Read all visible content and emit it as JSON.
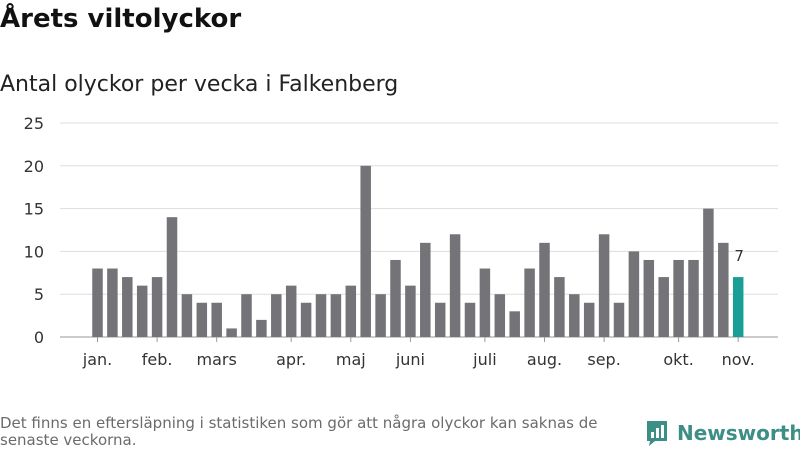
{
  "header": {
    "title": "Årets viltolyckor",
    "subtitle": "Antal olyckor per vecka i Falkenberg"
  },
  "footer": {
    "note": "Det finns en eftersläpning i statistiken som gör att några olyckor kan saknas de senaste veckorna.",
    "brand": "Newsworthy"
  },
  "colors": {
    "bar": "#747378",
    "highlight": "#1a9e96",
    "grid": "#dddddd",
    "brand": "#3d8f85"
  },
  "chart_data": {
    "type": "bar",
    "title": "Antal olyckor per vecka i Falkenberg",
    "xlabel": "",
    "ylabel": "",
    "ylim": [
      0,
      25
    ],
    "yticks": [
      0,
      5,
      10,
      15,
      20,
      25
    ],
    "grid": true,
    "legend": "none",
    "x_tick_labels": [
      {
        "label": "jan.",
        "at_week": 1
      },
      {
        "label": "feb.",
        "at_week": 5
      },
      {
        "label": "mars",
        "at_week": 9
      },
      {
        "label": "apr.",
        "at_week": 14
      },
      {
        "label": "maj",
        "at_week": 18
      },
      {
        "label": "juni",
        "at_week": 22
      },
      {
        "label": "juli",
        "at_week": 27
      },
      {
        "label": "aug.",
        "at_week": 31
      },
      {
        "label": "sep.",
        "at_week": 35
      },
      {
        "label": "okt.",
        "at_week": 40
      },
      {
        "label": "nov.",
        "at_week": 44
      }
    ],
    "weeks": [
      1,
      2,
      3,
      4,
      5,
      6,
      7,
      8,
      9,
      10,
      11,
      12,
      13,
      14,
      15,
      16,
      17,
      18,
      19,
      20,
      21,
      22,
      23,
      24,
      25,
      26,
      27,
      28,
      29,
      30,
      31,
      32,
      33,
      34,
      35,
      36,
      37,
      38,
      39,
      40,
      41,
      42,
      43,
      44
    ],
    "values": [
      8,
      8,
      7,
      6,
      7,
      14,
      5,
      4,
      4,
      1,
      5,
      2,
      5,
      6,
      4,
      5,
      5,
      6,
      20,
      5,
      9,
      6,
      11,
      4,
      12,
      4,
      8,
      5,
      3,
      8,
      11,
      7,
      5,
      4,
      12,
      4,
      10,
      9,
      7,
      9,
      9,
      15,
      11,
      7
    ],
    "highlight_index": 43,
    "data_labels": [
      {
        "index": 43,
        "text": "7"
      }
    ]
  }
}
